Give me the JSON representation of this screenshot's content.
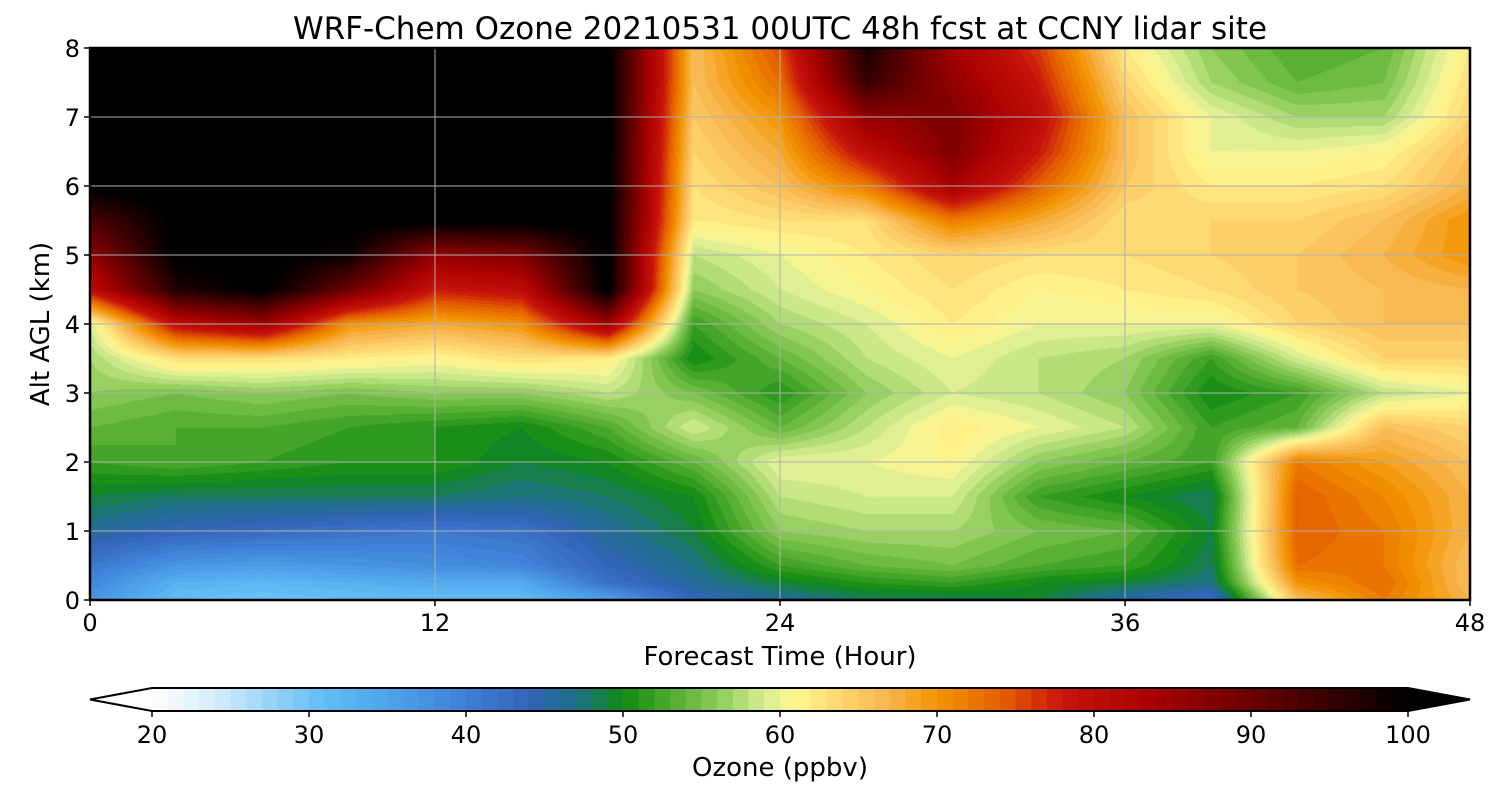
{
  "chart_data": {
    "type": "heatmap",
    "title": "WRF-Chem Ozone  20210531 00UTC 48h fcst at CCNY lidar site",
    "xlabel": "Forecast Time (Hour)",
    "ylabel": "Alt AGL (km)",
    "xlim": [
      0,
      48
    ],
    "ylim": [
      0,
      8
    ],
    "xticks": [
      0,
      12,
      24,
      36,
      48
    ],
    "yticks": [
      0,
      1,
      2,
      3,
      4,
      5,
      6,
      7,
      8
    ],
    "grid": true,
    "x": [
      0,
      3,
      6,
      9,
      12,
      15,
      18,
      21,
      24,
      27,
      30,
      33,
      36,
      39,
      42,
      45,
      48
    ],
    "y": [
      0,
      0.25,
      0.5,
      1,
      1.5,
      2,
      2.5,
      3,
      3.5,
      4,
      4.5,
      5,
      5.5,
      6,
      6.5,
      7,
      7.5,
      8
    ],
    "z": [
      [
        37,
        31,
        30,
        31,
        31,
        31,
        35,
        44,
        46,
        48,
        48,
        49,
        45,
        42,
        66,
        72,
        67
      ],
      [
        39,
        33,
        32,
        33,
        34,
        34,
        42,
        46,
        49,
        51,
        52,
        50,
        49,
        47,
        70,
        73,
        66
      ],
      [
        41,
        37,
        36,
        37,
        38,
        39,
        44,
        47,
        52,
        54,
        55,
        53,
        52,
        48,
        73,
        72,
        66
      ],
      [
        46,
        44,
        43,
        42,
        41,
        42,
        46,
        49,
        56,
        57,
        57,
        55,
        54,
        49,
        74,
        72,
        67
      ],
      [
        49,
        48,
        48,
        48,
        48,
        47,
        48,
        50,
        58,
        59,
        59,
        52,
        50,
        48,
        74,
        71,
        67
      ],
      [
        52,
        53,
        52,
        51,
        51,
        49,
        50,
        54,
        60,
        60,
        61,
        56,
        54,
        52,
        72,
        69,
        66
      ],
      [
        54,
        53,
        53,
        52,
        51,
        50,
        53,
        59,
        54,
        58,
        62,
        60,
        58,
        52,
        54,
        66,
        64
      ],
      [
        56,
        55,
        56,
        55,
        56,
        56,
        58,
        55,
        51,
        56,
        59,
        58,
        56,
        50,
        52,
        58,
        60
      ],
      [
        57,
        63,
        63,
        62,
        61,
        63,
        62,
        50,
        54,
        58,
        60,
        58,
        57,
        52,
        59,
        64,
        64
      ],
      [
        59,
        80,
        85,
        70,
        68,
        70,
        85,
        52,
        57,
        59,
        62,
        60,
        60,
        60,
        64,
        66,
        66
      ],
      [
        80,
        97,
        101,
        90,
        78,
        80,
        101,
        56,
        59,
        61,
        63,
        61,
        62,
        63,
        65,
        66,
        67
      ],
      [
        86,
        101,
        101,
        99,
        86,
        88,
        101,
        58,
        60,
        62,
        64,
        63,
        63,
        64,
        65,
        67,
        70
      ],
      [
        93,
        101,
        101,
        101,
        101,
        101,
        101,
        62,
        63,
        63,
        72,
        68,
        63,
        64,
        64,
        66,
        70
      ],
      [
        101,
        101,
        101,
        101,
        101,
        101,
        101,
        63,
        66,
        72,
        84,
        74,
        65,
        62,
        62,
        63,
        67
      ],
      [
        101,
        101,
        101,
        101,
        101,
        101,
        101,
        64,
        68,
        80,
        88,
        78,
        66,
        60,
        60,
        61,
        66
      ],
      [
        101,
        101,
        101,
        101,
        101,
        101,
        101,
        65,
        70,
        86,
        88,
        80,
        66,
        60,
        57,
        57,
        64
      ],
      [
        101,
        101,
        101,
        101,
        101,
        101,
        101,
        66,
        73,
        95,
        86,
        78,
        64,
        57,
        54,
        55,
        63
      ],
      [
        101,
        101,
        101,
        101,
        101,
        101,
        101,
        66,
        75,
        98,
        84,
        76,
        62,
        56,
        53,
        54,
        62
      ]
    ],
    "colorbar": {
      "label": "Ozone  (ppbv)",
      "ticks": [
        20,
        30,
        40,
        50,
        60,
        70,
        80,
        90,
        100
      ],
      "range": [
        20,
        100
      ],
      "extend": "both"
    },
    "colors": {
      "stops": [
        [
          20,
          "#ffffff"
        ],
        [
          24,
          "#d6ecfa"
        ],
        [
          28,
          "#8fd0f7"
        ],
        [
          31,
          "#62bdf5"
        ],
        [
          35,
          "#4fa4ea"
        ],
        [
          40,
          "#3f7fd6"
        ],
        [
          44,
          "#3363b9"
        ],
        [
          47,
          "#1d6f86"
        ],
        [
          50,
          "#0f8a12"
        ],
        [
          53,
          "#4faa2e"
        ],
        [
          56,
          "#8ccb58"
        ],
        [
          59,
          "#d6ec94"
        ],
        [
          61,
          "#fff68e"
        ],
        [
          64,
          "#fdd46f"
        ],
        [
          67,
          "#f8b44c"
        ],
        [
          70,
          "#f39400"
        ],
        [
          74,
          "#e46100"
        ],
        [
          78,
          "#c8140c"
        ],
        [
          84,
          "#a60000"
        ],
        [
          90,
          "#6a0000"
        ],
        [
          96,
          "#2c0000"
        ],
        [
          100,
          "#000000"
        ]
      ],
      "under": "#ffffff",
      "over": "#000000",
      "grid": "#b0b0b0"
    }
  }
}
